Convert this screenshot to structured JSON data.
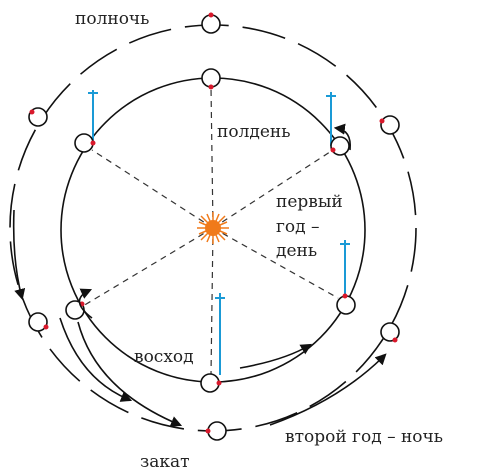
{
  "labels": {
    "midnight": "полночь",
    "noon": "полдень",
    "first_year_day": [
      "первый",
      "год –",
      "день"
    ],
    "sunrise": "восход",
    "sunset": "закат",
    "second_year_night": "второй год – ночь"
  }
}
